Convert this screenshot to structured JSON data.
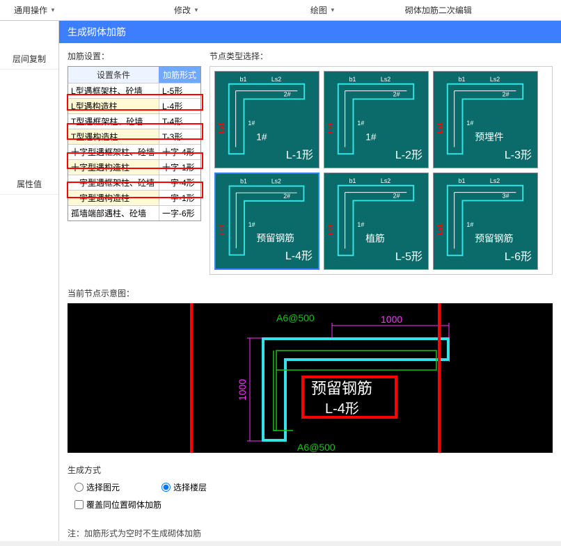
{
  "toolbar": {
    "general": "通用操作",
    "modify": "修改",
    "draw": "绘图",
    "wall_edit": "砌体加筋二次编辑"
  },
  "left_panel": {
    "copy_floor": "层间复制",
    "attr_value": "属性值"
  },
  "dialog": {
    "title": "生成砌体加筋",
    "settings_label": "加筋设置：",
    "node_type_label": "节点类型选择：",
    "preview_label": "当前节点示意图：",
    "gen_label": "生成方式",
    "radio_select_elem": "选择图元",
    "radio_select_floor": "选择楼层",
    "checkbox_overwrite": "覆盖同位置砌体加筋",
    "note": "注：加筋形式为空时不生成砌体加筋"
  },
  "settings_table": {
    "col1": "设置条件",
    "col2": "加筋形式",
    "rows": [
      {
        "cond": "L型遇框架柱、砼墙",
        "form": "L-5形",
        "hl": false
      },
      {
        "cond": "L型遇构造柱",
        "form": "L-4形",
        "hl": true
      },
      {
        "cond": "T型遇框架柱、砼墙",
        "form": "T-4形",
        "hl": false
      },
      {
        "cond": "T型遇构造柱",
        "form": "T-3形",
        "hl": true
      },
      {
        "cond": "十字型遇框架柱、砼墙",
        "form": "十字-4形",
        "hl": false
      },
      {
        "cond": "十字型遇构造柱",
        "form": "十字-1形",
        "hl": true
      },
      {
        "cond": "一字型遇框架柱、砼墙",
        "form": "一字-4形",
        "hl": false
      },
      {
        "cond": "一字型遇构造柱",
        "form": "一字-1形",
        "hl": true
      },
      {
        "cond": "孤墙端部遇柱、砼墙",
        "form": "一字-6形",
        "hl": false
      }
    ]
  },
  "nodes": [
    {
      "label": "L-1形",
      "sub": "1#",
      "dim1": "b1",
      "dim2": "Ls2",
      "extra": "2#"
    },
    {
      "label": "L-2形",
      "sub": "1#",
      "dim1": "b1",
      "dim2": "Ls2",
      "extra": "2#"
    },
    {
      "label": "L-3形",
      "sub": "预埋件",
      "dim1": "b1",
      "dim2": "Ls2",
      "extra": "2#"
    },
    {
      "label": "L-4形",
      "sub": "预留钢筋",
      "dim1": "b1",
      "dim2": "Ls2",
      "extra": "2#",
      "selected": true
    },
    {
      "label": "L-5形",
      "sub": "植筋",
      "dim1": "b1",
      "dim2": "Ls2",
      "extra": "2#"
    },
    {
      "label": "L-6形",
      "sub": "预留钢筋",
      "dim1": "b1",
      "dim2": "Ls2",
      "extra": "3#"
    }
  ],
  "preview": {
    "rebar_spec": "A6@500",
    "dim_h": "1000",
    "dim_v": "1000",
    "main_label": "预留钢筋",
    "sub_label": "L-4形"
  },
  "colors": {
    "teal": "#0b6b6b",
    "cyan": "#34e3e3",
    "blue_sel": "#3d7eff",
    "red": "#ff0000",
    "green": "#17c217",
    "magenta": "#ff33ff",
    "white": "#ffffff"
  }
}
